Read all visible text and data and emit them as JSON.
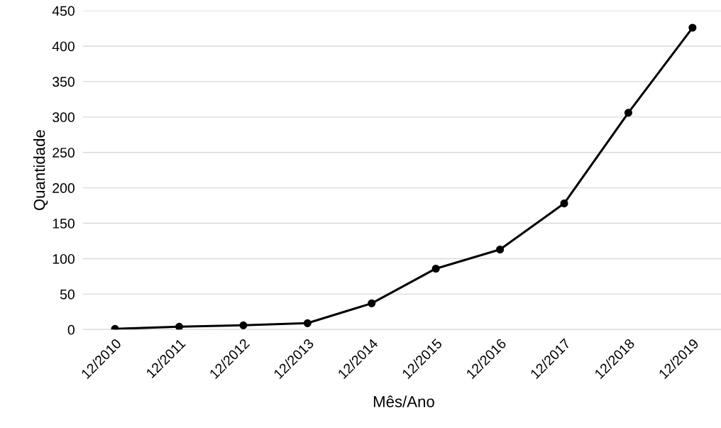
{
  "chart_data": {
    "type": "line",
    "xlabel": "Mês/Ano",
    "ylabel": "Quantidade",
    "categories": [
      "12/2010",
      "12/2011",
      "12/2012",
      "12/2013",
      "12/2014",
      "12/2015",
      "12/2016",
      "12/2017",
      "12/2018",
      "12/2019"
    ],
    "series": [
      {
        "color": "#000000",
        "values": [
          1,
          4,
          6,
          9,
          37,
          86,
          113,
          178,
          306,
          426
        ]
      }
    ],
    "ylim": [
      0,
      450
    ],
    "yticks": [
      0,
      50,
      100,
      150,
      200,
      250,
      300,
      350,
      400,
      450
    ],
    "grid": "y",
    "marker": "circle",
    "line_style": "solid",
    "legend": false
  }
}
